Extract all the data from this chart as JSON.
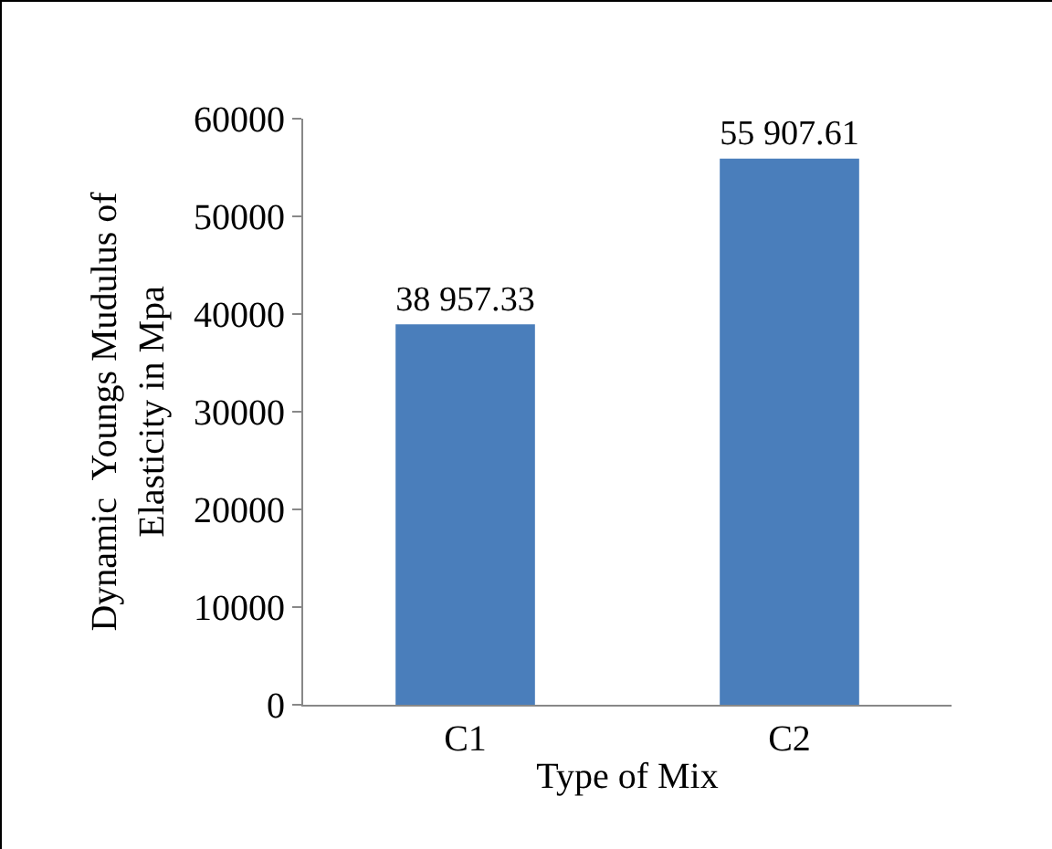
{
  "chart_data": {
    "type": "bar",
    "categories": [
      "C1",
      "C2"
    ],
    "values": [
      38957.33,
      55907.61
    ],
    "color": "#4a7ebb",
    "value_labels": [
      "38 957.33",
      "55 907.61"
    ],
    "xlabel": "Type of Mix",
    "ylabel": "Dynamic  Youngs Mudulus of\nElasticity in Mpa",
    "ylim": [
      0,
      60000
    ],
    "yticks": [
      0,
      10000,
      20000,
      30000,
      40000,
      50000,
      60000
    ]
  }
}
